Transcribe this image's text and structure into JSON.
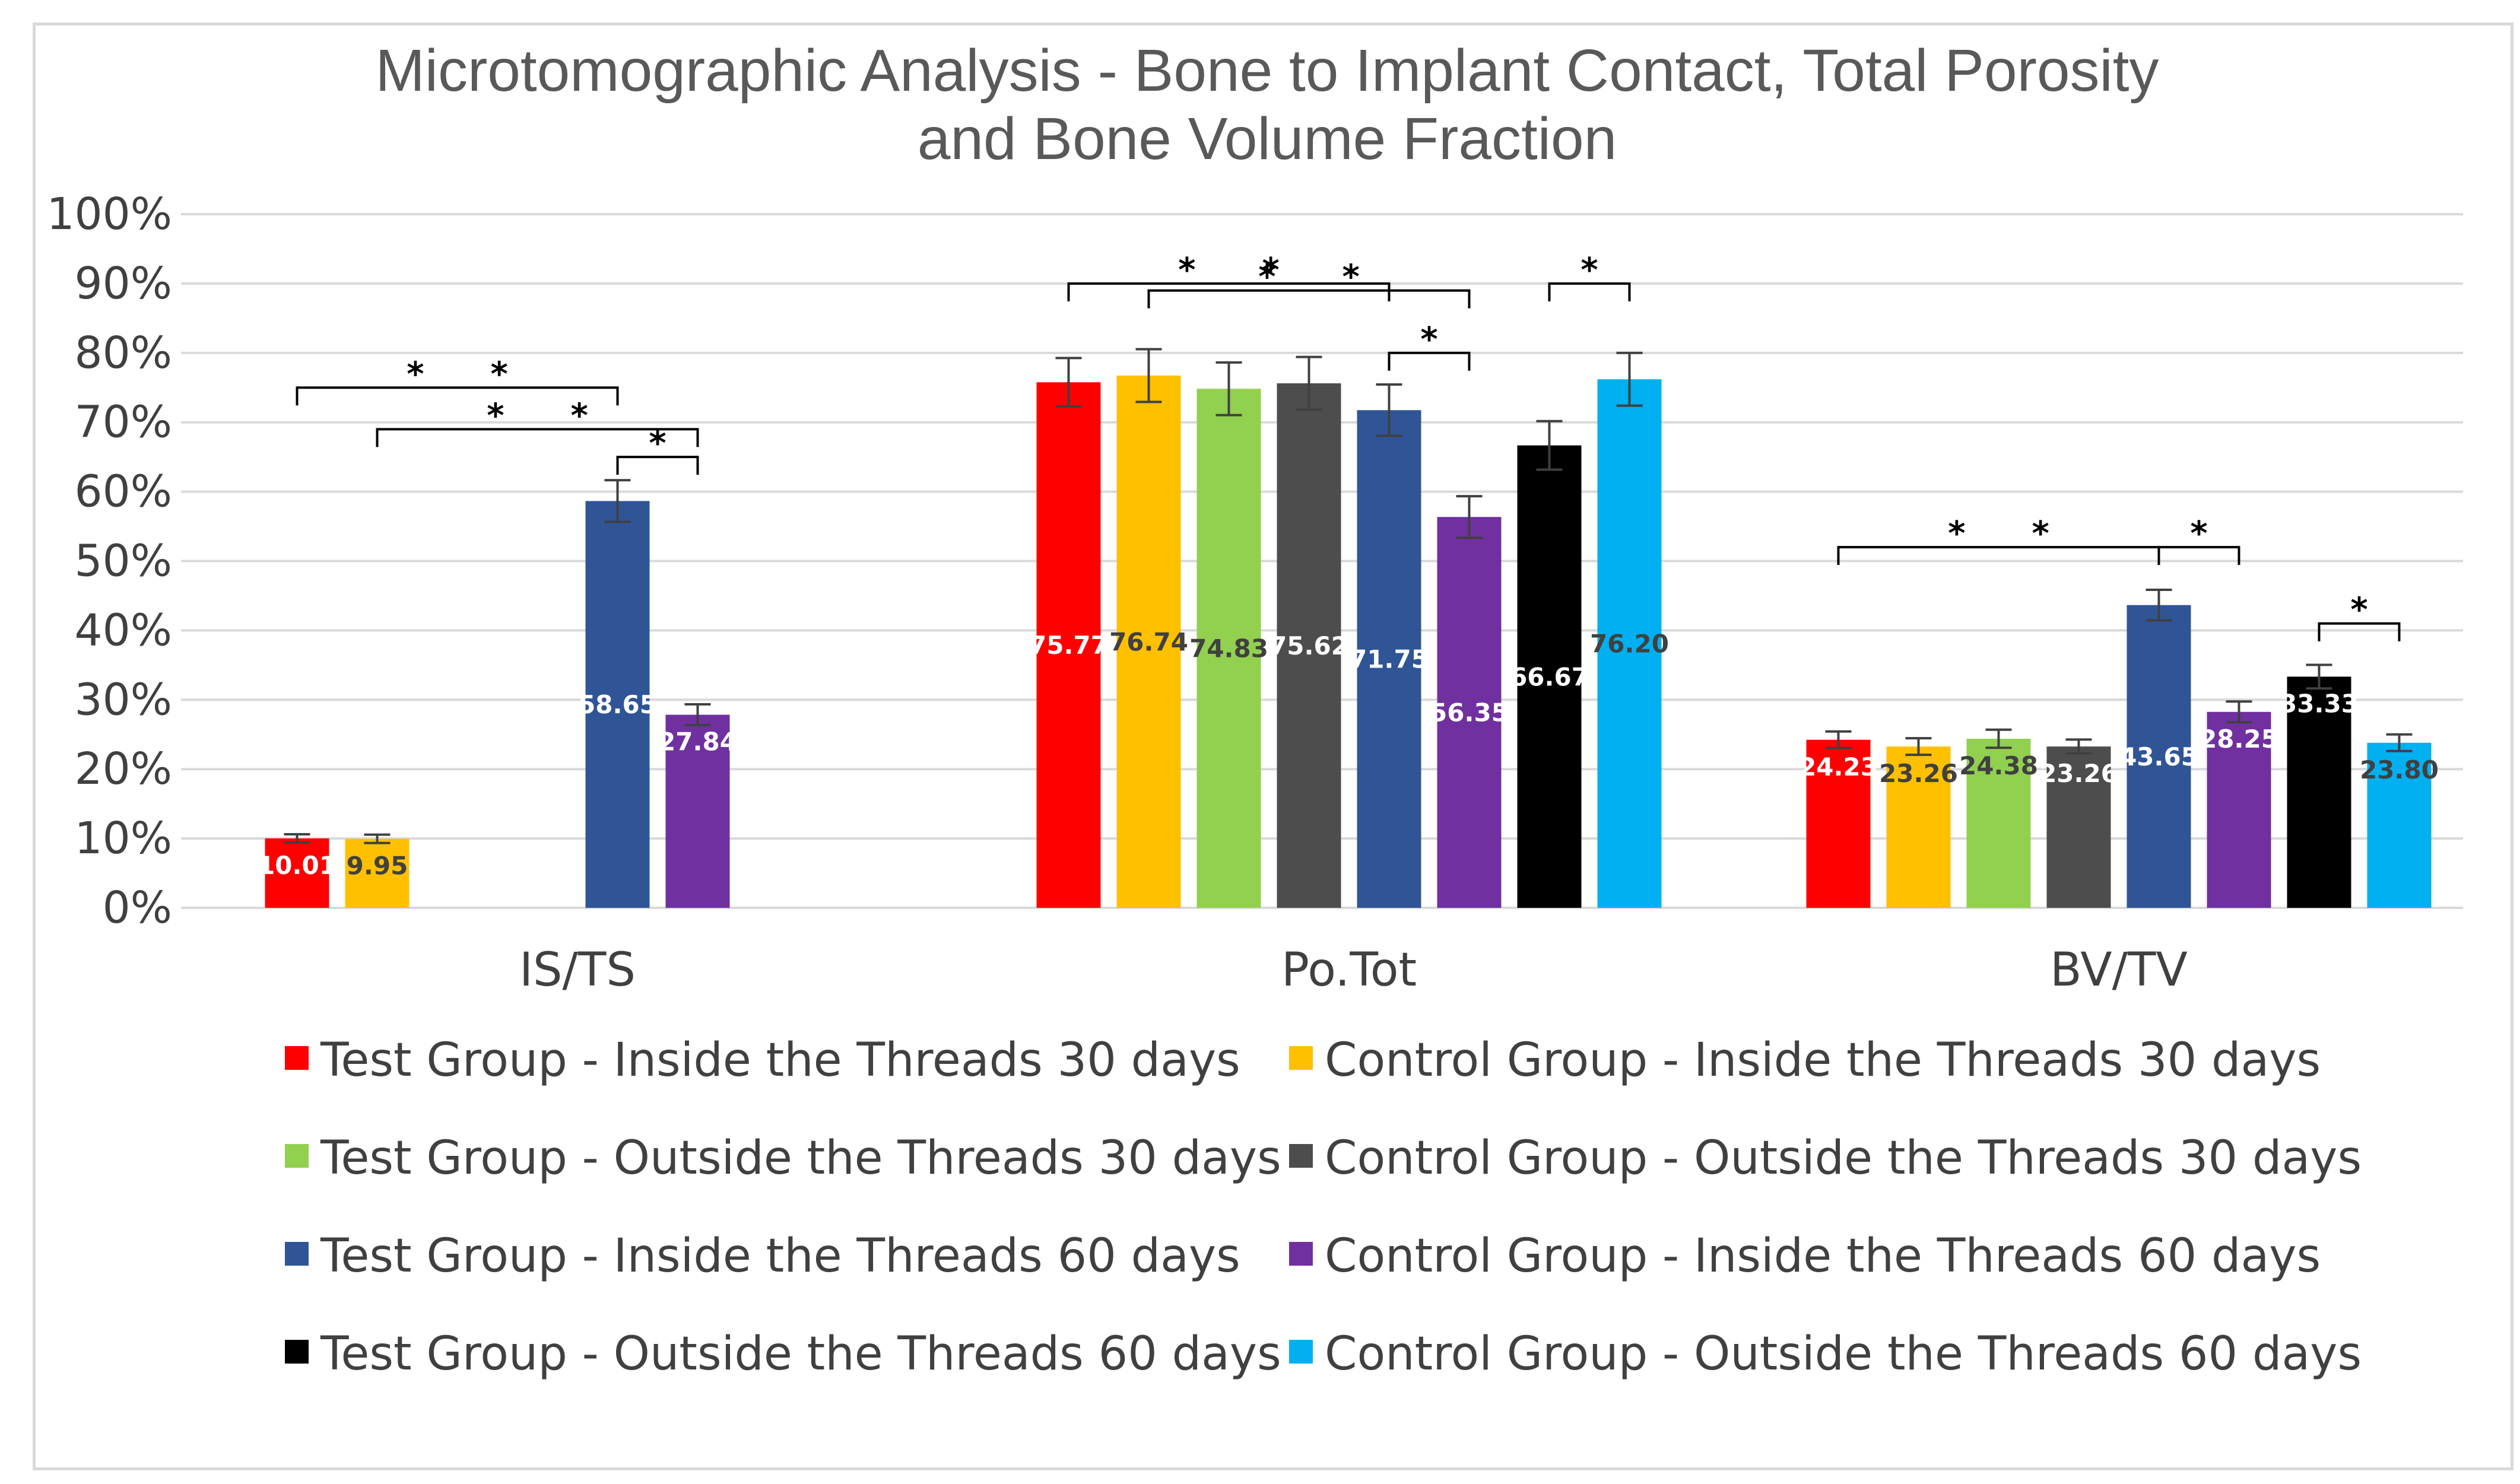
{
  "chart_data": {
    "type": "bar",
    "title": [
      "Microtomographic Analysis - Bone to Implant Contact, Total Porosity",
      "and Bone Volume Fraction"
    ],
    "xlabel": "",
    "ylabel": "",
    "ylim": [
      0,
      100
    ],
    "y_ticks": [
      "0%",
      "10%",
      "20%",
      "30%",
      "40%",
      "50%",
      "60%",
      "70%",
      "80%",
      "90%",
      "100%"
    ],
    "grid": true,
    "legend_position": "bottom",
    "categories": [
      "IS/TS",
      "Po.Tot",
      "BV/TV"
    ],
    "series": [
      {
        "name": "Test Group -  Inside the Threads 30 days",
        "color": "#ff0000",
        "values": [
          10.01,
          75.77,
          24.23
        ],
        "errors": [
          0.6,
          3.5,
          1.2
        ],
        "labels": [
          "10.01",
          "75.77",
          "24.23"
        ],
        "label_color": "#ffffff"
      },
      {
        "name": "Control Group - Inside the Threads 30 days",
        "color": "#ffc000",
        "values": [
          9.95,
          76.74,
          23.26
        ],
        "errors": [
          0.6,
          3.8,
          1.2
        ],
        "labels": [
          "9.95",
          "76.74",
          "23.26"
        ],
        "label_color": "#404040"
      },
      {
        "name": "Test Group - Outside the Threads 30 days",
        "color": "#92d050",
        "values": [
          null,
          74.83,
          24.38
        ],
        "errors": [
          null,
          3.8,
          1.3
        ],
        "labels": [
          "",
          "74.83",
          "24.38"
        ],
        "label_color": "#404040"
      },
      {
        "name": "Control Group - Outside the Threads 30 days",
        "color": "#4d4d4d",
        "values": [
          null,
          75.62,
          23.26
        ],
        "errors": [
          null,
          3.8,
          1.0
        ],
        "labels": [
          "",
          "75.62",
          "23.26"
        ],
        "label_color": "#ffffff"
      },
      {
        "name": "Test Group -  Inside the Threads 60 days",
        "color": "#2f5597",
        "values": [
          58.65,
          71.75,
          43.65
        ],
        "errors": [
          3.0,
          3.7,
          2.2
        ],
        "labels": [
          "58.65",
          "71.75",
          "43.65"
        ],
        "label_color": "#ffffff"
      },
      {
        "name": "Control Group - Inside the Threads 60 days",
        "color": "#7030a0",
        "values": [
          27.84,
          56.35,
          28.25
        ],
        "errors": [
          1.5,
          3.0,
          1.5
        ],
        "labels": [
          "27.84",
          "56.35",
          "28.25"
        ],
        "label_color": "#ffffff"
      },
      {
        "name": "Test Group - Outside the Threads 60 days",
        "color": "#000000",
        "values": [
          null,
          66.67,
          33.33
        ],
        "errors": [
          null,
          3.5,
          1.7
        ],
        "labels": [
          "",
          "66.67",
          "33.33"
        ],
        "label_color": "#ffffff"
      },
      {
        "name": "Control Group - Outside the Threads 60 days",
        "color": "#00b0f0",
        "values": [
          null,
          76.2,
          23.8
        ],
        "errors": [
          null,
          3.8,
          1.2
        ],
        "labels": [
          "",
          "76.20",
          "23.80"
        ],
        "label_color": "#404040"
      }
    ],
    "significance": [
      {
        "category": 0,
        "from_series": 0,
        "to_series": 4,
        "level": 75,
        "label": "* *"
      },
      {
        "category": 0,
        "from_series": 1,
        "to_series": 5,
        "level": 69,
        "label": "* *"
      },
      {
        "category": 0,
        "from_series": 4,
        "to_series": 5,
        "level": 65,
        "label": "*"
      },
      {
        "category": 1,
        "from_series": 1,
        "to_series": 5,
        "level": 89,
        "label": "* *"
      },
      {
        "category": 1,
        "from_series": 0,
        "to_series": 4,
        "level": 90,
        "label": "* *"
      },
      {
        "category": 1,
        "from_series": 4,
        "to_series": 5,
        "level": 80,
        "label": "*"
      },
      {
        "category": 1,
        "from_series": 6,
        "to_series": 7,
        "level": 90,
        "label": "*"
      },
      {
        "category": 2,
        "from_series": 0,
        "to_series": 4,
        "level": 52,
        "label": "* *"
      },
      {
        "category": 2,
        "from_series": 4,
        "to_series": 5,
        "level": 52,
        "label": "*"
      },
      {
        "category": 2,
        "from_series": 6,
        "to_series": 7,
        "level": 41,
        "label": "*"
      }
    ]
  }
}
